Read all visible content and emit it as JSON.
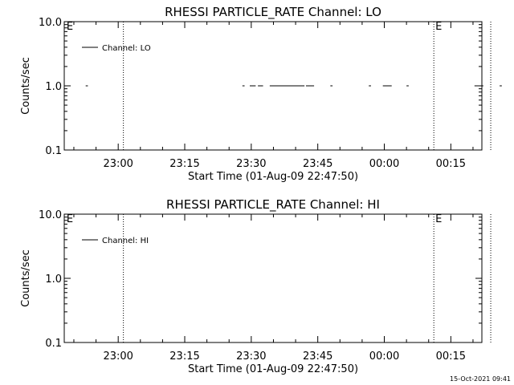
{
  "chart_data": [
    {
      "type": "line",
      "title": "RHESSI PARTICLE_RATE Channel: LO",
      "xlabel": "Start Time (01-Aug-09 22:47:50)",
      "ylabel": "Counts/sec",
      "yscale": "log",
      "ylim": [
        0.1,
        10.0
      ],
      "yticks": [
        "0.1",
        "1.0",
        "10.0"
      ],
      "x_ticks": [
        "23:00",
        "23:15",
        "23:30",
        "23:45",
        "00:00",
        "00:15"
      ],
      "legend": "top-left",
      "series": [
        {
          "name": "Channel: LO",
          "value": 1.0,
          "segments": [
            [
              "22:52:40",
              "22:53:10"
            ],
            [
              "23:28:00",
              "23:28:30"
            ],
            [
              "23:29:40",
              "23:31:00"
            ],
            [
              "23:31:30",
              "23:32:40"
            ],
            [
              "23:34:10",
              "23:42:00"
            ],
            [
              "23:42:20",
              "23:44:10"
            ],
            [
              "23:47:50",
              "23:48:20"
            ],
            [
              "23:56:30",
              "23:57:00"
            ],
            [
              "23:59:40",
              "00:01:40"
            ],
            [
              "00:05:00",
              "00:05:30"
            ],
            [
              "00:20:20",
              "00:20:50"
            ],
            [
              "00:21:50",
              "00:22:20"
            ],
            [
              "00:26:00",
              "00:26:30"
            ]
          ]
        }
      ],
      "markers": [
        {
          "label": "E",
          "time": "22:48:00",
          "line": false
        },
        {
          "label": "",
          "time": "23:01:10",
          "line": true
        },
        {
          "label": "E",
          "time": "00:11:10",
          "line": true
        },
        {
          "label": "",
          "time": "00:24:00",
          "line": true
        }
      ]
    },
    {
      "type": "line",
      "title": "RHESSI PARTICLE_RATE Channel: HI",
      "xlabel": "Start Time (01-Aug-09 22:47:50)",
      "ylabel": "Counts/sec",
      "yscale": "log",
      "ylim": [
        0.1,
        10.0
      ],
      "yticks": [
        "0.1",
        "1.0",
        "10.0"
      ],
      "x_ticks": [
        "23:00",
        "23:15",
        "23:30",
        "23:45",
        "00:00",
        "00:15"
      ],
      "legend": "top-left",
      "series": [
        {
          "name": "Channel: HI",
          "value": 1.0,
          "segments": []
        }
      ],
      "markers": [
        {
          "label": "E",
          "time": "22:48:00",
          "line": false
        },
        {
          "label": "",
          "time": "23:01:10",
          "line": true
        },
        {
          "label": "E",
          "time": "00:11:10",
          "line": true
        },
        {
          "label": "",
          "time": "00:24:00",
          "line": true
        }
      ]
    }
  ],
  "footer": {
    "timestamp": "15-Oct-2021 09:41"
  }
}
